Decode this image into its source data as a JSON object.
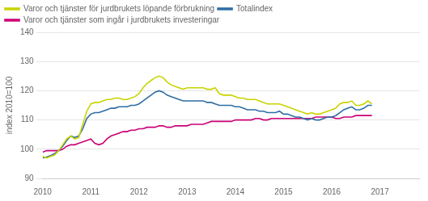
{
  "chart_data": {
    "type": "line",
    "ylabel": "index 2010=100",
    "xlim": [
      2010.0,
      2017.83
    ],
    "xticks": [
      2010,
      2011,
      2012,
      2013,
      2014,
      2015,
      2016,
      2017
    ],
    "ylim": [
      90,
      140
    ],
    "yticks": [
      90,
      100,
      110,
      120,
      130,
      140
    ],
    "grid": true,
    "legend": "upper left",
    "x": [
      2010.0,
      2010.0833333333333,
      2010.1666666666667,
      2010.25,
      2010.3333333333333,
      2010.4166666666667,
      2010.5,
      2010.5833333333333,
      2010.6666666666667,
      2010.75,
      2010.8333333333333,
      2010.9166666666667,
      2011.0,
      2011.0833333333333,
      2011.1666666666667,
      2011.25,
      2011.3333333333333,
      2011.4166666666667,
      2011.5,
      2011.5833333333333,
      2011.6666666666667,
      2011.75,
      2011.8333333333333,
      2011.9166666666667,
      2012.0,
      2012.0833333333333,
      2012.1666666666667,
      2012.25,
      2012.3333333333333,
      2012.4166666666667,
      2012.5,
      2012.5833333333333,
      2012.6666666666667,
      2012.75,
      2012.8333333333333,
      2012.9166666666667,
      2013.0,
      2013.0833333333333,
      2013.1666666666667,
      2013.25,
      2013.3333333333333,
      2013.4166666666667,
      2013.5,
      2013.5833333333333,
      2013.6666666666667,
      2013.75,
      2013.8333333333333,
      2013.9166666666667,
      2014.0,
      2014.0833333333333,
      2014.1666666666667,
      2014.25,
      2014.3333333333333,
      2014.4166666666667,
      2014.5,
      2014.5833333333333,
      2014.6666666666667,
      2014.75,
      2014.8333333333333,
      2014.9166666666667,
      2015.0,
      2015.0833333333333,
      2015.1666666666667,
      2015.25,
      2015.3333333333333,
      2015.4166666666667,
      2015.5,
      2015.5833333333333,
      2015.6666666666667,
      2015.75,
      2015.8333333333333,
      2015.9166666666667,
      2016.0,
      2016.0833333333333,
      2016.1666666666667,
      2016.25,
      2016.3333333333333,
      2016.4166666666667,
      2016.5,
      2016.5833333333333,
      2016.6666666666667,
      2016.75,
      2016.8333333333333
    ],
    "series": [
      {
        "name": "Varor och tjänster för jurdbrukets löpande förbrukning",
        "color": "#c8d400",
        "values": [
          97.5,
          97.0,
          97.5,
          98.0,
          99.5,
          101.5,
          103.5,
          104.5,
          103.5,
          104.0,
          108.5,
          113.0,
          115.5,
          116.0,
          116.0,
          116.5,
          117.0,
          117.0,
          117.5,
          117.5,
          117.0,
          117.0,
          117.5,
          118.0,
          119.0,
          121.0,
          122.5,
          123.5,
          124.5,
          125.0,
          124.5,
          123.0,
          122.0,
          121.5,
          121.0,
          120.5,
          121.0,
          121.0,
          121.0,
          121.0,
          121.0,
          120.5,
          120.5,
          121.0,
          119.0,
          118.5,
          118.5,
          118.5,
          118.0,
          117.5,
          117.5,
          117.0,
          117.0,
          117.0,
          116.5,
          116.0,
          115.5,
          115.5,
          115.5,
          115.5,
          115.0,
          114.5,
          114.0,
          113.5,
          113.0,
          112.5,
          112.0,
          112.5,
          112.0,
          112.0,
          112.5,
          113.0,
          113.5,
          114.0,
          115.5,
          116.0,
          116.0,
          116.5,
          115.0,
          115.0,
          115.5,
          116.5,
          115.5
        ]
      },
      {
        "name": "Totalindex",
        "color": "#2e6da4",
        "values": [
          97.0,
          97.3,
          97.8,
          98.5,
          99.5,
          101.0,
          103.0,
          104.5,
          104.0,
          104.5,
          107.0,
          110.5,
          112.0,
          112.5,
          112.5,
          113.0,
          113.5,
          114.0,
          114.0,
          114.5,
          114.5,
          114.5,
          115.0,
          115.0,
          115.5,
          116.5,
          117.5,
          118.5,
          119.5,
          120.0,
          119.5,
          118.5,
          118.0,
          117.5,
          117.0,
          116.5,
          116.5,
          116.5,
          116.5,
          116.5,
          116.5,
          116.0,
          116.0,
          115.5,
          115.0,
          115.0,
          115.0,
          115.0,
          114.5,
          114.5,
          114.0,
          113.5,
          113.5,
          113.5,
          113.0,
          113.0,
          112.5,
          112.5,
          112.5,
          113.0,
          112.0,
          112.0,
          111.5,
          111.0,
          111.0,
          110.5,
          110.0,
          110.5,
          110.0,
          110.0,
          110.5,
          111.0,
          111.0,
          111.5,
          112.5,
          113.5,
          114.0,
          114.5,
          113.5,
          113.5,
          114.0,
          115.0,
          115.0
        ]
      },
      {
        "name": "Varor och tjänster som ingår i jurdbrukets investeringar",
        "color": "#cc0077",
        "values": [
          99.0,
          99.5,
          99.5,
          99.5,
          99.5,
          100.0,
          101.0,
          101.5,
          101.5,
          102.0,
          102.5,
          103.0,
          103.5,
          102.0,
          101.5,
          102.0,
          103.5,
          104.5,
          105.0,
          105.5,
          106.0,
          106.0,
          106.5,
          106.5,
          107.0,
          107.0,
          107.5,
          107.5,
          107.5,
          108.0,
          108.0,
          107.5,
          107.5,
          108.0,
          108.0,
          108.0,
          108.0,
          108.5,
          108.5,
          108.5,
          108.5,
          109.0,
          109.5,
          109.5,
          109.5,
          109.5,
          109.5,
          109.5,
          110.0,
          110.0,
          110.0,
          110.0,
          110.0,
          110.5,
          110.5,
          110.0,
          110.0,
          110.5,
          110.5,
          110.5,
          110.5,
          110.5,
          110.5,
          110.5,
          110.5,
          110.5,
          110.5,
          110.5,
          111.0,
          111.0,
          111.0,
          111.0,
          111.0,
          110.5,
          110.5,
          111.0,
          111.0,
          111.0,
          111.5,
          111.5,
          111.5,
          111.5,
          111.5
        ]
      }
    ]
  }
}
